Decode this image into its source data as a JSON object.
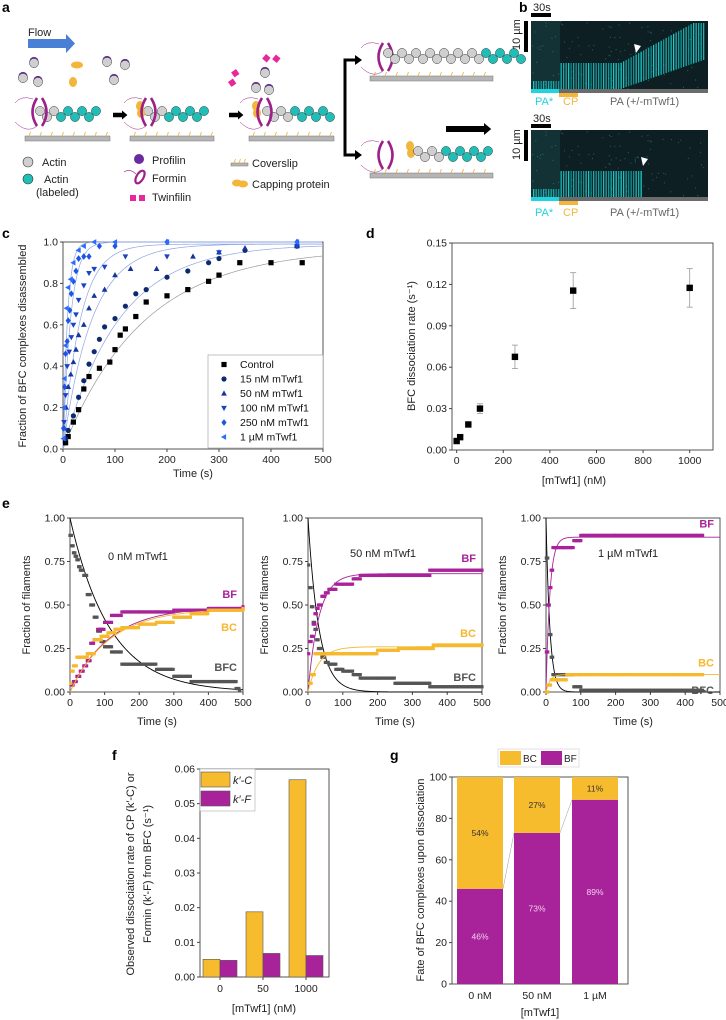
{
  "panel_labels": {
    "a": "a",
    "b": "b",
    "c": "c",
    "d": "d",
    "e": "e",
    "f": "f",
    "g": "g"
  },
  "panel_a": {
    "flow": "Flow",
    "legend": {
      "actin": "Actin",
      "actin_labeled_1": "Actin",
      "actin_labeled_2": "(labeled)",
      "profilin": "Profilin",
      "formin": "Formin",
      "twinfilin": "Twinfilin",
      "coverslip": "Coverslip",
      "capping_protein": "Capping protein"
    },
    "colors": {
      "actin": "#cfcfcf",
      "actin_labeled": "#1fbfb8",
      "profilin": "#6a2aa0",
      "formin": "#9c1f8a",
      "twinfilin": "#e8279b",
      "capping": "#f2b63a",
      "flow": "#4a7fd6",
      "coverslip": "#b5b5b5"
    }
  },
  "panel_b": {
    "scale_time": "30s",
    "scale_length": "10 µm",
    "kymographs": [
      {
        "pa_star": "PA*",
        "cp": "CP",
        "pa": "PA (+/-mTwf1)"
      },
      {
        "pa_star": "PA*",
        "cp": "CP",
        "pa": "PA (+/-mTwf1)"
      }
    ],
    "colors": {
      "pa_star": "#22d3e0",
      "cp": "#f2b63a",
      "pa": "#6b6b6b"
    }
  },
  "chart_data": [
    {
      "id": "c",
      "type": "scatter",
      "xlabel": "Time (s)",
      "ylabel": "Fraction of BFC complexes disassembled",
      "xlim": [
        0,
        500
      ],
      "ylim": [
        0,
        1.0
      ],
      "xticks": [
        0,
        100,
        200,
        300,
        400,
        500
      ],
      "yticks": [
        0.0,
        0.2,
        0.4,
        0.6,
        0.8,
        1.0
      ],
      "legend_position": "bottom-right",
      "series": [
        {
          "name": "Control",
          "marker": "square",
          "color": "#000000",
          "fit_rate": 0.0065,
          "plateau": 0.97,
          "x": [
            5,
            10,
            20,
            30,
            40,
            50,
            70,
            90,
            100,
            110,
            120,
            140,
            160,
            200,
            240,
            280,
            300,
            340,
            400,
            460
          ],
          "y": [
            0.03,
            0.06,
            0.13,
            0.19,
            0.29,
            0.35,
            0.39,
            0.42,
            0.48,
            0.55,
            0.58,
            0.64,
            0.71,
            0.74,
            0.77,
            0.81,
            0.84,
            0.9,
            0.9,
            0.9
          ]
        },
        {
          "name": "15 nM mTwf1",
          "marker": "circle",
          "color": "#0d2a6e",
          "fit_rate": 0.0093,
          "plateau": 0.99,
          "x": [
            5,
            10,
            20,
            30,
            40,
            50,
            60,
            70,
            80,
            100,
            120,
            140,
            160,
            200,
            240,
            280,
            300,
            350,
            450
          ],
          "y": [
            0.05,
            0.09,
            0.16,
            0.25,
            0.33,
            0.41,
            0.47,
            0.53,
            0.59,
            0.63,
            0.69,
            0.75,
            0.77,
            0.83,
            0.86,
            0.9,
            0.92,
            0.96,
            0.98
          ]
        },
        {
          "name": "50 nM mTwf1",
          "marker": "triangle-up",
          "color": "#15359c",
          "fit_rate": 0.018,
          "plateau": 0.99,
          "x": [
            3,
            6,
            10,
            15,
            20,
            25,
            30,
            40,
            50,
            60,
            80,
            100,
            130,
            180,
            250,
            300,
            350,
            450
          ],
          "y": [
            0.1,
            0.2,
            0.3,
            0.36,
            0.42,
            0.48,
            0.55,
            0.6,
            0.68,
            0.74,
            0.77,
            0.84,
            0.87,
            0.87,
            0.93,
            0.95,
            0.97,
            0.98
          ]
        },
        {
          "name": "100 nM mTwf1",
          "marker": "triangle-down",
          "color": "#1b43c4",
          "fit_rate": 0.03,
          "plateau": 0.99,
          "x": [
            2,
            5,
            8,
            12,
            16,
            20,
            25,
            30,
            40,
            50,
            60,
            80,
            120,
            200,
            300,
            450
          ],
          "y": [
            0.13,
            0.26,
            0.4,
            0.47,
            0.54,
            0.6,
            0.65,
            0.72,
            0.79,
            0.85,
            0.87,
            0.88,
            0.93,
            0.93,
            0.95,
            0.98
          ]
        },
        {
          "name": "250 nM mTwf1",
          "marker": "diamond",
          "color": "#1f55e6",
          "fit_rate": 0.068,
          "plateau": 1.0,
          "x": [
            1,
            3,
            5,
            8,
            10,
            13,
            16,
            20,
            25,
            30,
            40,
            50,
            70,
            100,
            200,
            450
          ],
          "y": [
            0.1,
            0.3,
            0.46,
            0.52,
            0.62,
            0.67,
            0.75,
            0.81,
            0.86,
            0.92,
            0.93,
            0.93,
            0.98,
            0.98,
            1.0,
            1.0
          ]
        },
        {
          "name": "1 µM mTwf1",
          "marker": "triangle-left",
          "color": "#2b6cff",
          "fit_rate": 0.117,
          "plateau": 1.0,
          "x": [
            1,
            2,
            3,
            5,
            7,
            10,
            15,
            20,
            30,
            40,
            60,
            100,
            200,
            450
          ],
          "y": [
            0.05,
            0.2,
            0.34,
            0.5,
            0.68,
            0.78,
            0.82,
            0.9,
            0.96,
            0.98,
            1.0,
            1.0,
            1.0,
            1.0
          ]
        }
      ]
    },
    {
      "id": "d",
      "type": "scatter",
      "xlabel": "[mTwf1] (nM)",
      "ylabel": "BFC dissociation rate (s⁻¹)",
      "xlim": [
        -20,
        1100
      ],
      "ylim": [
        0,
        0.15
      ],
      "xticks": [
        0,
        200,
        400,
        600,
        800,
        1000
      ],
      "yticks": [
        0.0,
        0.03,
        0.06,
        0.09,
        0.12,
        0.15
      ],
      "x": [
        0,
        15,
        50,
        100,
        250,
        500,
        1000
      ],
      "y": [
        0.0065,
        0.0093,
        0.0185,
        0.03,
        0.0675,
        0.1155,
        0.1175
      ],
      "yerr": [
        0.001,
        0.001,
        0.0015,
        0.0035,
        0.0085,
        0.013,
        0.014
      ]
    },
    {
      "id": "e1",
      "type": "scatter",
      "title": "0 nM mTwf1",
      "xlabel": "Time (s)",
      "ylabel": "Fraction of filaments",
      "xlim": [
        0,
        500
      ],
      "ylim": [
        0,
        1.0
      ],
      "xticks": [
        0,
        100,
        200,
        300,
        400,
        500
      ],
      "yticks": [
        0.0,
        0.25,
        0.5,
        0.75,
        1.0
      ],
      "fit_rate": 0.0087,
      "series": [
        {
          "name": "BFC",
          "color": "#555555",
          "fit_plateau": 1.0,
          "decay": true,
          "x": [
            0,
            5,
            10,
            15,
            20,
            25,
            30,
            40,
            50,
            60,
            70,
            80,
            90,
            100,
            120,
            150,
            200,
            250,
            300,
            350,
            400,
            480,
            490
          ],
          "y": [
            0.9,
            0.84,
            0.8,
            0.78,
            0.76,
            0.72,
            0.7,
            0.67,
            0.56,
            0.5,
            0.43,
            0.35,
            0.29,
            0.26,
            0.23,
            0.16,
            0.16,
            0.13,
            0.09,
            0.06,
            0.06,
            0.02,
            0.01
          ]
        },
        {
          "name": "BF",
          "color": "#a8239a",
          "fit_plateau": 0.49,
          "x": [
            5,
            10,
            20,
            30,
            40,
            50,
            60,
            70,
            80,
            90,
            100,
            120,
            150,
            200,
            300,
            400,
            500
          ],
          "y": [
            0.04,
            0.06,
            0.09,
            0.12,
            0.15,
            0.18,
            0.28,
            0.3,
            0.36,
            0.36,
            0.4,
            0.44,
            0.46,
            0.46,
            0.47,
            0.48,
            0.49
          ]
        },
        {
          "name": "BC",
          "color": "#f5b82e",
          "fit_plateau": 0.48,
          "x": [
            2,
            5,
            10,
            20,
            30,
            50,
            70,
            90,
            110,
            130,
            150,
            200,
            250,
            300,
            350,
            400,
            500
          ],
          "y": [
            0.05,
            0.12,
            0.15,
            0.2,
            0.2,
            0.22,
            0.3,
            0.32,
            0.34,
            0.36,
            0.37,
            0.39,
            0.4,
            0.43,
            0.45,
            0.47,
            0.48
          ]
        }
      ]
    },
    {
      "id": "e2",
      "type": "scatter",
      "title": "50 nM mTwf1",
      "xlabel": "Time (s)",
      "ylabel": "Fraction of filaments",
      "xlim": [
        0,
        500
      ],
      "ylim": [
        0,
        1.0
      ],
      "xticks": [
        0,
        100,
        200,
        300,
        400,
        500
      ],
      "yticks": [
        0.0,
        0.25,
        0.5,
        0.75,
        1.0
      ],
      "fit_rate": 0.032,
      "series": [
        {
          "name": "BFC",
          "color": "#555555",
          "fit_plateau": 1.0,
          "decay": true,
          "x": [
            2,
            5,
            10,
            15,
            20,
            25,
            30,
            40,
            50,
            60,
            80,
            100,
            130,
            150,
            200,
            250,
            350,
            500
          ],
          "y": [
            0.73,
            0.6,
            0.49,
            0.4,
            0.36,
            0.3,
            0.25,
            0.2,
            0.17,
            0.16,
            0.13,
            0.12,
            0.1,
            0.08,
            0.08,
            0.05,
            0.03,
            0.03
          ]
        },
        {
          "name": "BF",
          "color": "#a8239a",
          "fit_plateau": 0.68,
          "x": [
            2,
            5,
            10,
            15,
            20,
            25,
            30,
            40,
            50,
            60,
            80,
            100,
            130,
            150,
            250,
            350,
            500
          ],
          "y": [
            0.22,
            0.29,
            0.32,
            0.39,
            0.45,
            0.48,
            0.5,
            0.55,
            0.57,
            0.59,
            0.62,
            0.62,
            0.65,
            0.67,
            0.67,
            0.7,
            0.7
          ]
        },
        {
          "name": "BC",
          "color": "#f5b82e",
          "fit_plateau": 0.26,
          "x": [
            5,
            10,
            20,
            40,
            60,
            100,
            150,
            200,
            260,
            360,
            500
          ],
          "y": [
            0.05,
            0.1,
            0.22,
            0.22,
            0.22,
            0.22,
            0.22,
            0.24,
            0.25,
            0.27,
            0.27
          ]
        }
      ]
    },
    {
      "id": "e3",
      "type": "scatter",
      "title": "1 µM mTwf1",
      "xlabel": "Time (s)",
      "ylabel": "Fraction of filaments",
      "xlim": [
        0,
        500
      ],
      "ylim": [
        0,
        1.0
      ],
      "xticks": [
        0,
        100,
        200,
        300,
        400,
        500
      ],
      "yticks": [
        0.0,
        0.25,
        0.5,
        0.75,
        1.0
      ],
      "fit_rate": 0.09,
      "series": [
        {
          "name": "BFC",
          "color": "#555555",
          "fit_plateau": 1.0,
          "decay": true,
          "x": [
            1,
            5,
            10,
            15,
            20,
            30,
            50,
            80,
            100,
            200,
            450
          ],
          "y": [
            0.77,
            0.5,
            0.33,
            0.2,
            0.1,
            0.1,
            0.1,
            0.03,
            0.01,
            0.01,
            0.01
          ]
        },
        {
          "name": "BF",
          "color": "#a8239a",
          "fit_plateau": 0.89,
          "x": [
            1,
            5,
            10,
            15,
            20,
            30,
            50,
            80,
            100,
            200,
            450
          ],
          "y": [
            0.23,
            0.5,
            0.6,
            0.7,
            0.83,
            0.83,
            0.83,
            0.87,
            0.9,
            0.9,
            0.9
          ]
        },
        {
          "name": "BC",
          "color": "#f5b82e",
          "fit_plateau": 0.1,
          "x": [
            1,
            5,
            15,
            30,
            60,
            100,
            200,
            450
          ],
          "y": [
            0,
            0.04,
            0.07,
            0.07,
            0.1,
            0.1,
            0.1,
            0.1
          ]
        }
      ]
    },
    {
      "id": "f",
      "type": "bar",
      "xlabel": "[mTwf1] (nM)",
      "ylabel_line1": "Observed dissociation rate of CP (k′-C) or",
      "ylabel_line2": "Formin (k′-F) from BFC (s⁻¹)",
      "categories": [
        "0",
        "50",
        "1000"
      ],
      "ylim": [
        0,
        0.06
      ],
      "yticks": [
        0.0,
        0.01,
        0.02,
        0.03,
        0.04,
        0.05,
        0.06
      ],
      "legend_position": "top-left",
      "series": [
        {
          "name": "k′-C",
          "color": "#f7bb2e",
          "values": [
            0.0051,
            0.0188,
            0.0569
          ]
        },
        {
          "name": "k′-F",
          "color": "#a8239a",
          "values": [
            0.0048,
            0.0068,
            0.0062
          ]
        }
      ]
    },
    {
      "id": "g",
      "type": "bar",
      "stacked": true,
      "xlabel": "[mTwf1]",
      "ylabel": "Fate of BFC complexes upon dissociation",
      "categories": [
        "0 nM",
        "50 nM",
        "1 µM"
      ],
      "ylim": [
        0,
        100
      ],
      "yticks": [
        0,
        20,
        40,
        60,
        80,
        100
      ],
      "legend_position": "top",
      "series": [
        {
          "name": "BF",
          "color": "#a8239a",
          "values": [
            46,
            73,
            89
          ],
          "labels": [
            "46%",
            "73%",
            "89%"
          ]
        },
        {
          "name": "BC",
          "color": "#f7bb2e",
          "values": [
            54,
            27,
            11
          ],
          "labels": [
            "54%",
            "27%",
            "11%"
          ]
        }
      ]
    }
  ]
}
